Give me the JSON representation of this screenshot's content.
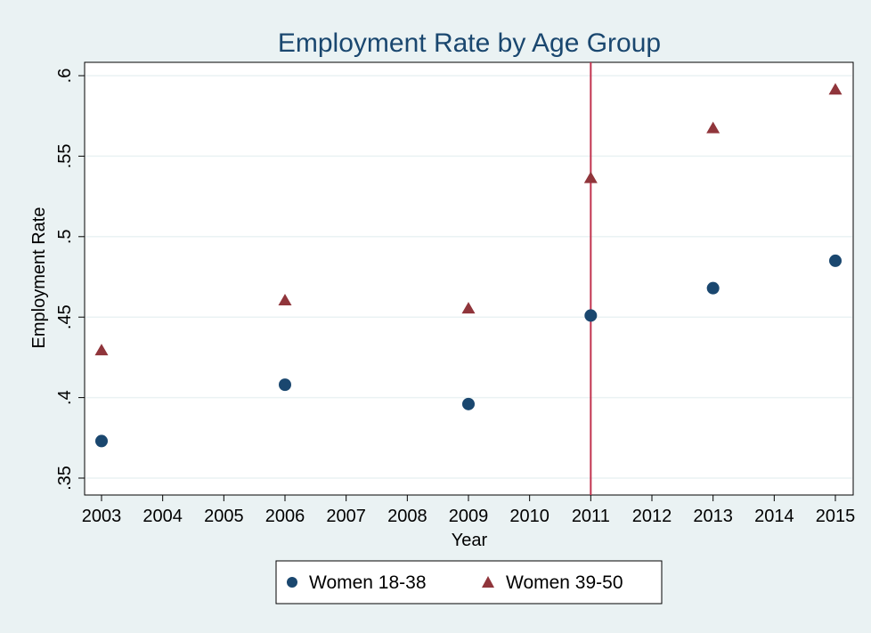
{
  "chart_data": {
    "type": "scatter",
    "title": "Employment Rate by Age Group",
    "xlabel": "Year",
    "ylabel": "Employment Rate",
    "xlim": [
      2003,
      2015
    ],
    "ylim": [
      0.35,
      0.6
    ],
    "x_ticks": [
      {
        "value": 2003,
        "label": "2003"
      },
      {
        "value": 2004,
        "label": "2004"
      },
      {
        "value": 2005,
        "label": "2005"
      },
      {
        "value": 2006,
        "label": "2006"
      },
      {
        "value": 2007,
        "label": "2007"
      },
      {
        "value": 2008,
        "label": "2008"
      },
      {
        "value": 2009,
        "label": "2009"
      },
      {
        "value": 2010,
        "label": "2010"
      },
      {
        "value": 2011,
        "label": "2011"
      },
      {
        "value": 2012,
        "label": "2012"
      },
      {
        "value": 2013,
        "label": "2013"
      },
      {
        "value": 2014,
        "label": "2014"
      },
      {
        "value": 2015,
        "label": "2015"
      }
    ],
    "y_ticks": [
      {
        "value": 0.35,
        "label": ".35"
      },
      {
        "value": 0.4,
        "label": ".4"
      },
      {
        "value": 0.45,
        "label": ".45"
      },
      {
        "value": 0.5,
        "label": ".5"
      },
      {
        "value": 0.55,
        "label": ".55"
      },
      {
        "value": 0.6,
        "label": ".6"
      }
    ],
    "grid": true,
    "legend_position": "bottom",
    "reference_line": {
      "axis": "x",
      "value": 2011,
      "color": "#c2334f"
    },
    "series": [
      {
        "name": "Women 18-38",
        "marker": "circle",
        "color": "#1a476f",
        "points": [
          {
            "x": 2003,
            "y": 0.373
          },
          {
            "x": 2006,
            "y": 0.408
          },
          {
            "x": 2009,
            "y": 0.396
          },
          {
            "x": 2011,
            "y": 0.451
          },
          {
            "x": 2013,
            "y": 0.468
          },
          {
            "x": 2015,
            "y": 0.485
          }
        ]
      },
      {
        "name": "Women 39-50",
        "marker": "triangle",
        "color": "#90353b",
        "points": [
          {
            "x": 2003,
            "y": 0.429
          },
          {
            "x": 2006,
            "y": 0.46
          },
          {
            "x": 2009,
            "y": 0.455
          },
          {
            "x": 2011,
            "y": 0.536
          },
          {
            "x": 2013,
            "y": 0.567
          },
          {
            "x": 2015,
            "y": 0.591
          }
        ]
      }
    ],
    "colors": {
      "background": "#eaf2f3",
      "plot_area": "#ffffff",
      "grid": "#eaf2f3",
      "title": "#1a476f"
    }
  }
}
